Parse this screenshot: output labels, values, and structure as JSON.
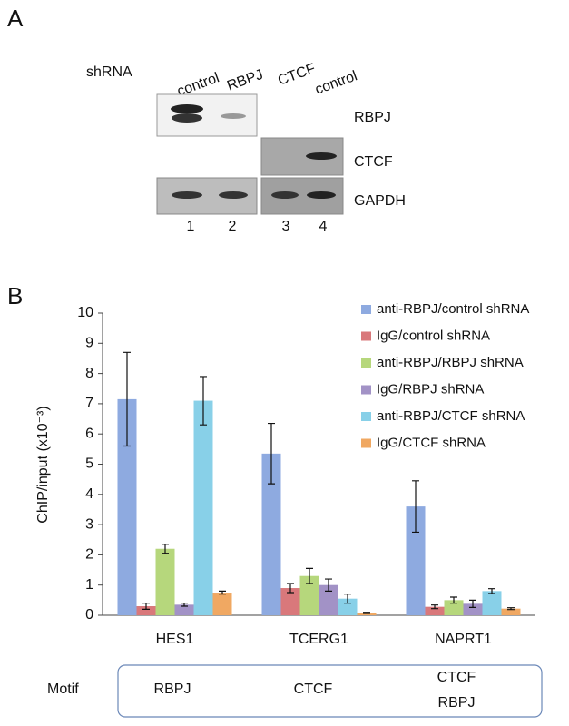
{
  "panel_a": {
    "label": "A",
    "shrna_label": "shRNA",
    "lanes": [
      "control",
      "RBPJ",
      "CTCF",
      "control"
    ],
    "rows": [
      "RBPJ",
      "CTCF",
      "GAPDH"
    ],
    "lane_numbers": [
      "1",
      "2",
      "3",
      "4"
    ]
  },
  "panel_b_label": "B",
  "chart_data": {
    "type": "bar",
    "y_label": "ChIP/input (x10⁻³)",
    "categories": [
      "HES1",
      "TCERG1",
      "NAPRT1"
    ],
    "series": [
      {
        "name": "anti-RBPJ/control shRNA",
        "color": "#8eaae0",
        "values": [
          7.15,
          5.35,
          3.6
        ],
        "errors": [
          1.55,
          1.0,
          0.85
        ]
      },
      {
        "name": "IgG/control shRNA",
        "color": "#d9787b",
        "values": [
          0.3,
          0.9,
          0.28
        ],
        "errors": [
          0.1,
          0.15,
          0.06
        ]
      },
      {
        "name": "anti-RBPJ/RBPJ shRNA",
        "color": "#b6d77c",
        "values": [
          2.2,
          1.3,
          0.5
        ],
        "errors": [
          0.15,
          0.25,
          0.1
        ]
      },
      {
        "name": "IgG/RBPJ  shRNA",
        "color": "#a292c6",
        "values": [
          0.35,
          1.0,
          0.38
        ],
        "errors": [
          0.05,
          0.2,
          0.12
        ]
      },
      {
        "name": "anti-RBPJ/CTCF shRNA",
        "color": "#88d0e8",
        "values": [
          7.1,
          0.55,
          0.8
        ],
        "errors": [
          0.8,
          0.15,
          0.08
        ]
      },
      {
        "name": "IgG/CTCF  shRNA",
        "color": "#f0a862",
        "values": [
          0.75,
          0.08,
          0.22
        ],
        "errors": [
          0.05,
          0.02,
          0.03
        ]
      }
    ],
    "ylim": [
      0,
      10
    ],
    "yticks": [
      0,
      1,
      2,
      3,
      4,
      5,
      6,
      7,
      8,
      9,
      10
    ],
    "legend": "upper right",
    "grid": false
  },
  "motif": {
    "label": "Motif",
    "labels": [
      [
        "RBPJ"
      ],
      [
        "CTCF"
      ],
      [
        "CTCF",
        "RBPJ"
      ]
    ]
  }
}
